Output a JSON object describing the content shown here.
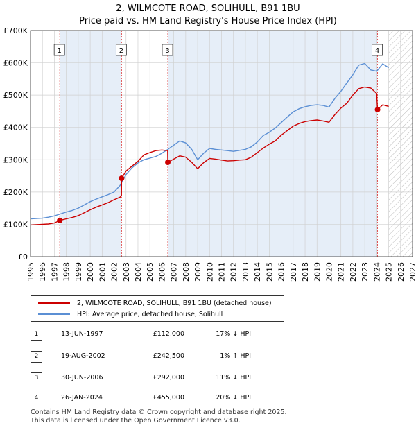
{
  "title": {
    "line1": "2, WILMCOTE ROAD, SOLIHULL, B91 1BU",
    "line2": "Price paid vs. HM Land Registry's House Price Index (HPI)"
  },
  "colors": {
    "price": "#cc0000",
    "hpi": "#5b8fd4",
    "shade": "#e6eef8",
    "vline": "#dd4444",
    "grid": "#d0d0d0"
  },
  "chart_data": {
    "type": "line",
    "title": "2, WILMCOTE ROAD, SOLIHULL, B91 1BU — Price paid vs. HM Land Registry's House Price Index (HPI)",
    "xlim": [
      1995,
      2027
    ],
    "ylim": [
      0,
      700000
    ],
    "x_ticks": [
      "1995",
      "1996",
      "1997",
      "1998",
      "1999",
      "2000",
      "2001",
      "2002",
      "2003",
      "2004",
      "2005",
      "2006",
      "2007",
      "2008",
      "2009",
      "2010",
      "2011",
      "2012",
      "2013",
      "2014",
      "2015",
      "2016",
      "2017",
      "2018",
      "2019",
      "2020",
      "2021",
      "2022",
      "2023",
      "2024",
      "2025",
      "2026",
      "2027"
    ],
    "y_ticks": [
      {
        "value": 0,
        "label": "£0"
      },
      {
        "value": 100000,
        "label": "£100K"
      },
      {
        "value": 200000,
        "label": "£200K"
      },
      {
        "value": 300000,
        "label": "£300K"
      },
      {
        "value": 400000,
        "label": "£400K"
      },
      {
        "value": 500000,
        "label": "£500K"
      },
      {
        "value": 600000,
        "label": "£600K"
      },
      {
        "value": 700000,
        "label": "£700K"
      }
    ],
    "shaded_ranges": [
      [
        1997.45,
        2002.63
      ],
      [
        2006.5,
        2024.07
      ]
    ],
    "future_hatch_from": 2025.0,
    "series": [
      {
        "name": "2, WILMCOTE ROAD, SOLIHULL, B91 1BU (detached house)",
        "x": [
          1995.0,
          1995.5,
          1996.0,
          1996.5,
          1997.0,
          1997.45,
          1998.0,
          1998.5,
          1999.0,
          1999.5,
          2000.0,
          2000.5,
          2001.0,
          2001.5,
          2002.0,
          2002.5,
          2002.62,
          2002.63,
          2003.0,
          2003.5,
          2004.0,
          2004.5,
          2005.0,
          2005.5,
          2006.0,
          2006.49,
          2006.5,
          2007.0,
          2007.5,
          2008.0,
          2008.5,
          2009.0,
          2009.5,
          2010.0,
          2010.5,
          2011.0,
          2011.5,
          2012.0,
          2012.5,
          2013.0,
          2013.5,
          2014.0,
          2014.5,
          2015.0,
          2015.5,
          2016.0,
          2016.5,
          2017.0,
          2017.5,
          2018.0,
          2018.5,
          2019.0,
          2019.5,
          2020.0,
          2020.5,
          2021.0,
          2021.5,
          2022.0,
          2022.5,
          2023.0,
          2023.5,
          2024.0,
          2024.07,
          2024.5,
          2025.0
        ],
        "y": [
          98000,
          99000,
          100000,
          101000,
          104000,
          112000,
          117000,
          121000,
          127000,
          136000,
          145000,
          153000,
          160000,
          167000,
          176000,
          184000,
          188000,
          242500,
          265000,
          280000,
          295000,
          315000,
          322000,
          328000,
          330000,
          328000,
          292000,
          302000,
          312000,
          308000,
          292000,
          272000,
          291000,
          304000,
          302000,
          299000,
          296000,
          297000,
          299000,
          300000,
          308000,
          322000,
          336000,
          348000,
          358000,
          376000,
          390000,
          404000,
          412000,
          418000,
          421000,
          423000,
          420000,
          416000,
          440000,
          460000,
          475000,
          500000,
          520000,
          525000,
          522000,
          505000,
          455000,
          470000,
          465000
        ]
      },
      {
        "name": "HPI: Average price, detached house, Solihull",
        "x": [
          1995.0,
          1995.5,
          1996.0,
          1996.5,
          1997.0,
          1997.5,
          1998.0,
          1998.5,
          1999.0,
          1999.5,
          2000.0,
          2000.5,
          2001.0,
          2001.5,
          2002.0,
          2002.5,
          2003.0,
          2003.5,
          2004.0,
          2004.5,
          2005.0,
          2005.5,
          2006.0,
          2006.5,
          2007.0,
          2007.5,
          2008.0,
          2008.5,
          2009.0,
          2009.5,
          2010.0,
          2010.5,
          2011.0,
          2011.5,
          2012.0,
          2012.5,
          2013.0,
          2013.5,
          2014.0,
          2014.5,
          2015.0,
          2015.5,
          2016.0,
          2016.5,
          2017.0,
          2017.5,
          2018.0,
          2018.5,
          2019.0,
          2019.5,
          2020.0,
          2020.5,
          2021.0,
          2021.5,
          2022.0,
          2022.5,
          2023.0,
          2023.5,
          2024.0,
          2024.5,
          2025.0
        ],
        "y": [
          117000,
          118000,
          119000,
          122000,
          126000,
          132000,
          138000,
          143000,
          150000,
          160000,
          170000,
          178000,
          185000,
          192000,
          200000,
          220000,
          254000,
          275000,
          290000,
          300000,
          305000,
          310000,
          320000,
          332000,
          345000,
          358000,
          352000,
          332000,
          300000,
          320000,
          335000,
          332000,
          330000,
          328000,
          326000,
          329000,
          332000,
          340000,
          355000,
          375000,
          385000,
          398000,
          415000,
          432000,
          448000,
          458000,
          464000,
          468000,
          470000,
          468000,
          463000,
          490000,
          512000,
          538000,
          563000,
          593000,
          598000,
          578000,
          574000,
          597000,
          585000
        ]
      }
    ],
    "sales": [
      {
        "num": "1",
        "year": 1997.45,
        "price": 112000
      },
      {
        "num": "2",
        "year": 2002.63,
        "price": 242500
      },
      {
        "num": "3",
        "year": 2006.5,
        "price": 292000
      },
      {
        "num": "4",
        "year": 2024.07,
        "price": 455000
      }
    ]
  },
  "legend": {
    "price_label": "2, WILMCOTE ROAD, SOLIHULL, B91 1BU (detached house)",
    "hpi_label": "HPI: Average price, detached house, Solihull"
  },
  "sales_table": [
    {
      "num": "1",
      "date": "13-JUN-1997",
      "price": "£112,000",
      "hpi": "17% ↓ HPI"
    },
    {
      "num": "2",
      "date": "19-AUG-2002",
      "price": "£242,500",
      "hpi": "1% ↑ HPI"
    },
    {
      "num": "3",
      "date": "30-JUN-2006",
      "price": "£292,000",
      "hpi": "11% ↓ HPI"
    },
    {
      "num": "4",
      "date": "26-JAN-2024",
      "price": "£455,000",
      "hpi": "20% ↓ HPI"
    }
  ],
  "footer": {
    "line1": "Contains HM Land Registry data © Crown copyright and database right 2025.",
    "line2": "This data is licensed under the Open Government Licence v3.0."
  }
}
